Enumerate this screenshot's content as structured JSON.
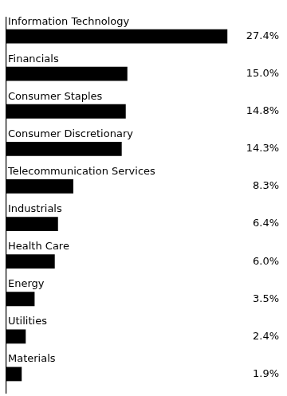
{
  "chart_data": {
    "type": "bar",
    "orientation": "horizontal",
    "categories": [
      "Information Technology",
      "Financials",
      "Consumer Staples",
      "Consumer Discretionary",
      "Telecommunication Services",
      "Industrials",
      "Health Care",
      "Energy",
      "Utilities",
      "Materials"
    ],
    "values": [
      27.4,
      15.0,
      14.8,
      14.3,
      8.3,
      6.4,
      6.0,
      3.5,
      2.4,
      1.9
    ],
    "value_labels": [
      "27.4%",
      "15.0%",
      "14.8%",
      "14.3%",
      "8.3%",
      "6.4%",
      "6.0%",
      "3.5%",
      "2.4%",
      "1.9%"
    ],
    "color": "#000000",
    "xlim": [
      0,
      34
    ],
    "grid": false,
    "data_labels": true,
    "tick_labels": false
  }
}
